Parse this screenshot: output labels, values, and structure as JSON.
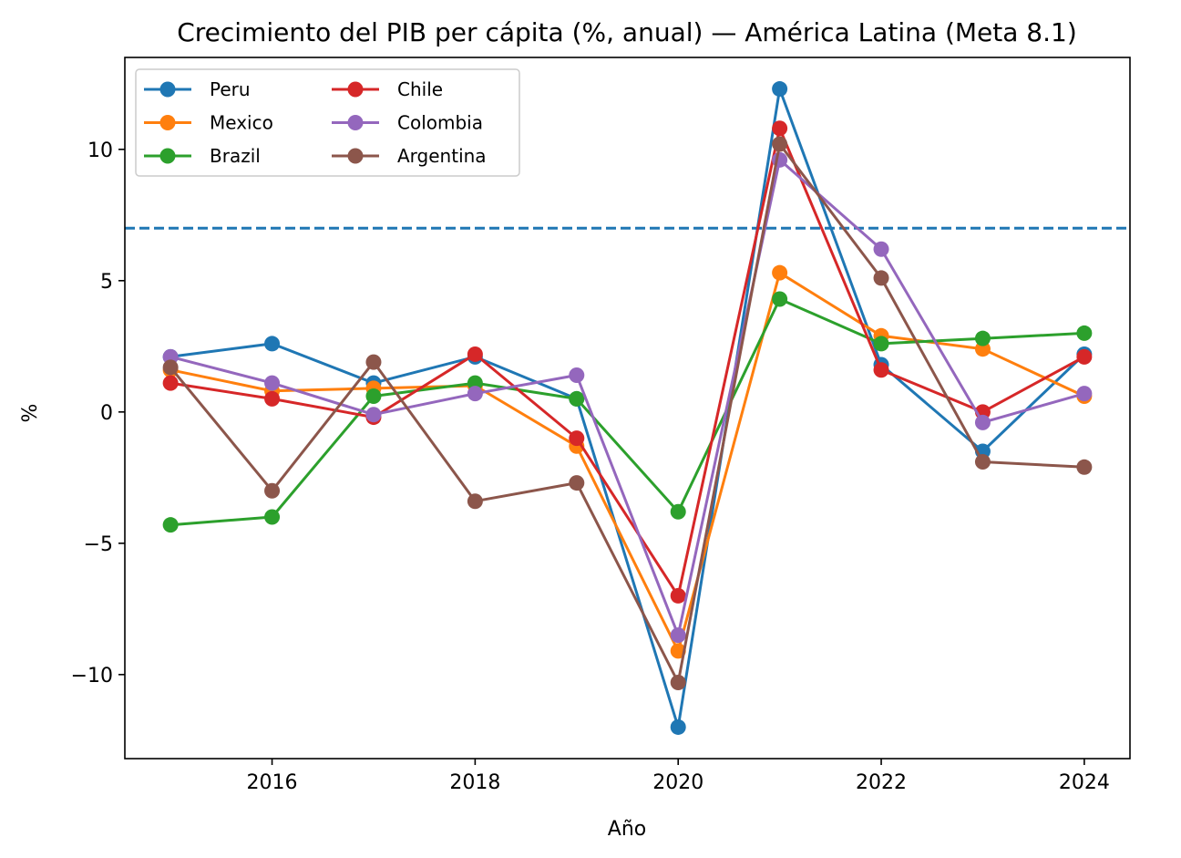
{
  "chart_data": {
    "type": "line",
    "title": "Crecimiento del PIB per cápita (%, anual) — América Latina (Meta 8.1)",
    "xlabel": "Año",
    "ylabel": "%",
    "xlim": [
      2014.55,
      2024.45
    ],
    "ylim": [
      -13.2,
      13.5
    ],
    "x_ticks": [
      2016,
      2018,
      2020,
      2022,
      2024
    ],
    "y_ticks": [
      -10,
      -5,
      0,
      5,
      10
    ],
    "y_tick_labels": [
      "−10",
      "−5",
      "0",
      "5",
      "10"
    ],
    "grid": false,
    "legend_position": "upper-left",
    "legend_columns": 2,
    "reference_line": {
      "y": 7,
      "style": "dashed",
      "color": "#1f77b4"
    },
    "x": [
      2015,
      2016,
      2017,
      2018,
      2019,
      2020,
      2021,
      2022,
      2023,
      2024
    ],
    "series": [
      {
        "name": "Peru",
        "color": "#1f77b4",
        "values": [
          2.1,
          2.6,
          1.1,
          2.1,
          0.5,
          -12.0,
          12.3,
          1.8,
          -1.5,
          2.2
        ]
      },
      {
        "name": "Mexico",
        "color": "#ff7f0e",
        "values": [
          1.6,
          0.8,
          0.9,
          1.0,
          -1.3,
          -9.1,
          5.3,
          2.9,
          2.4,
          0.6
        ]
      },
      {
        "name": "Brazil",
        "color": "#2ca02c",
        "values": [
          -4.3,
          -4.0,
          0.6,
          1.1,
          0.5,
          -3.8,
          4.3,
          2.6,
          2.8,
          3.0
        ]
      },
      {
        "name": "Chile",
        "color": "#d62728",
        "values": [
          1.1,
          0.5,
          -0.2,
          2.2,
          -1.0,
          -7.0,
          10.8,
          1.6,
          0.0,
          2.1
        ]
      },
      {
        "name": "Colombia",
        "color": "#9467bd",
        "values": [
          2.1,
          1.1,
          -0.1,
          0.7,
          1.4,
          -8.5,
          9.6,
          6.2,
          -0.4,
          0.7
        ]
      },
      {
        "name": "Argentina",
        "color": "#8c564b",
        "values": [
          1.7,
          -3.0,
          1.9,
          -3.4,
          -2.7,
          -10.3,
          10.2,
          5.1,
          -1.9,
          -2.1
        ]
      }
    ]
  }
}
